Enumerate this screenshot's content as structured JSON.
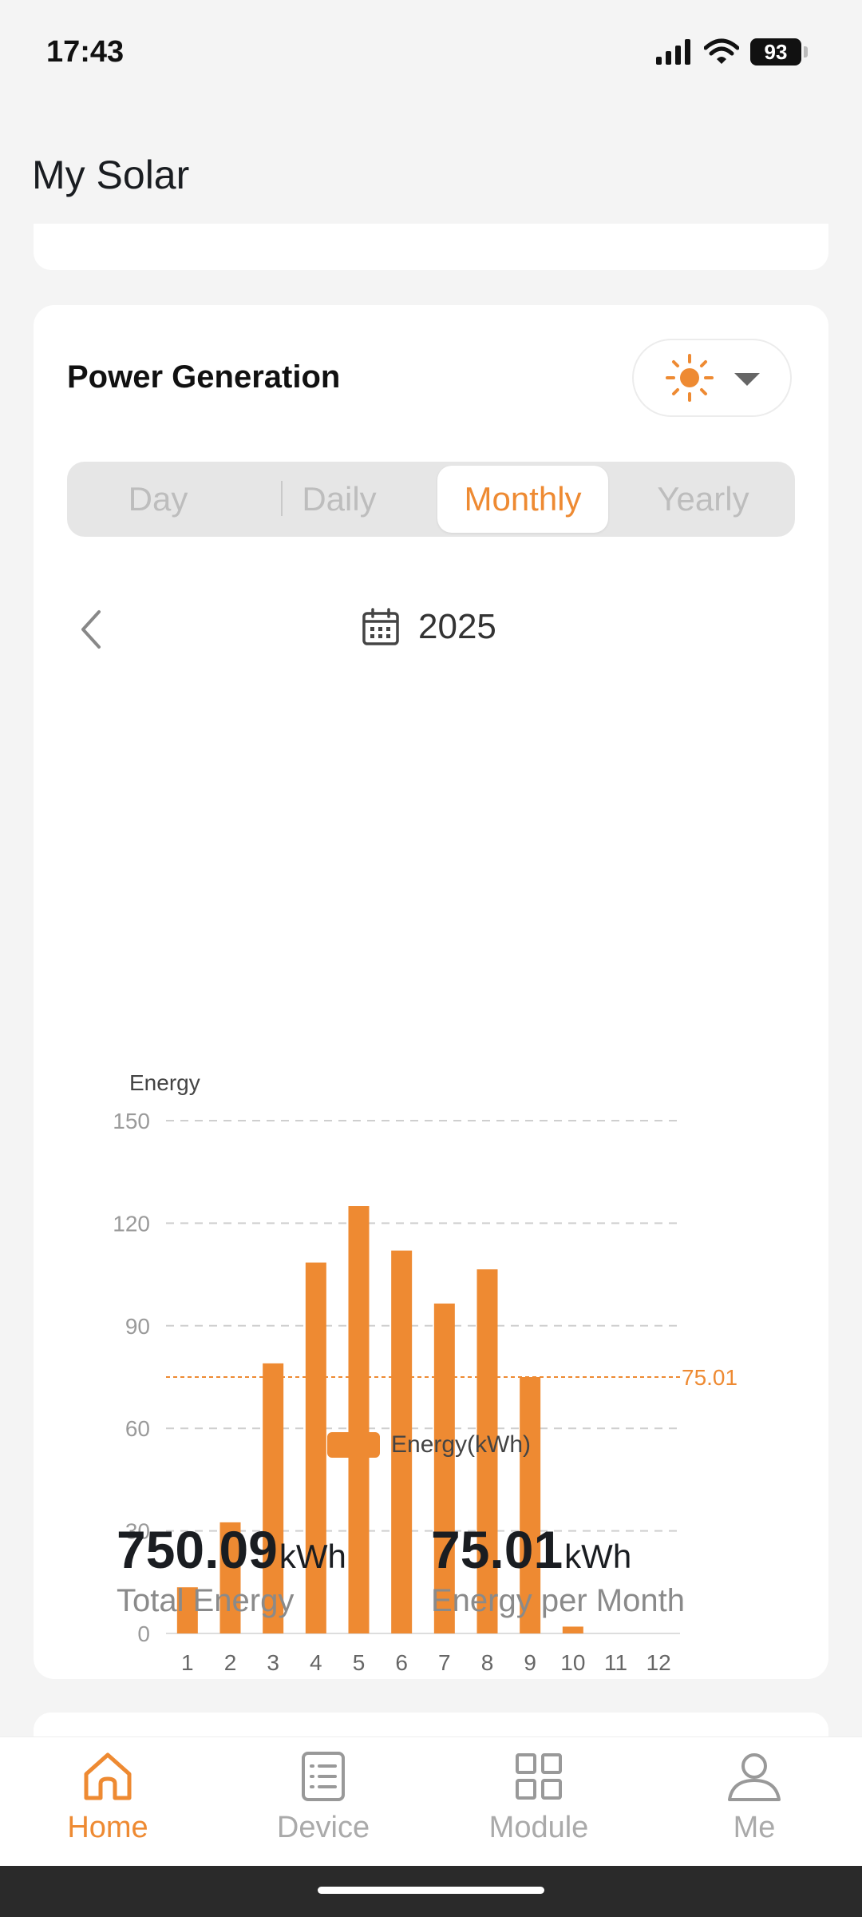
{
  "status_bar": {
    "time": "17:43",
    "battery": "93"
  },
  "page": {
    "title": "My Solar"
  },
  "power_card": {
    "title": "Power Generation",
    "weather_icon": "sun-icon",
    "tabs": [
      {
        "label": "Day",
        "active": false
      },
      {
        "label": "Daily",
        "active": false
      },
      {
        "label": "Monthly",
        "active": true
      },
      {
        "label": "Yearly",
        "active": false
      }
    ],
    "date": "2025"
  },
  "chart_data": {
    "type": "bar",
    "ylabel": "Energy",
    "categories": [
      "1",
      "2",
      "3",
      "4",
      "5",
      "6",
      "7",
      "8",
      "9",
      "10",
      "11",
      "12"
    ],
    "series": [
      {
        "name": "Energy(kWh)",
        "values": [
          13.5,
          32.5,
          79,
          108.5,
          125,
          112,
          96.5,
          106.5,
          75,
          2,
          0,
          0
        ]
      }
    ],
    "ylim": [
      0,
      150
    ],
    "yticks": [
      "0",
      "30",
      "60",
      "90",
      "120",
      "150"
    ],
    "average_line": {
      "value": 75.01,
      "label": "75.01"
    },
    "color": "#EE8A32",
    "grid": true,
    "legend_position": "bottom"
  },
  "stats": {
    "total": {
      "value": "750.09",
      "unit": "kWh",
      "label": "Total Energy"
    },
    "per_month": {
      "value": "75.01",
      "unit": "kWh",
      "label": "Energy per Month"
    }
  },
  "nav": {
    "items": [
      {
        "label": "Home",
        "icon": "home-icon",
        "active": true
      },
      {
        "label": "Device",
        "icon": "device-list-icon",
        "active": false
      },
      {
        "label": "Module",
        "icon": "module-grid-icon",
        "active": false
      },
      {
        "label": "Me",
        "icon": "user-icon",
        "active": false
      }
    ]
  },
  "colors": {
    "accent": "#EE8A32",
    "background": "#F4F4F4"
  }
}
